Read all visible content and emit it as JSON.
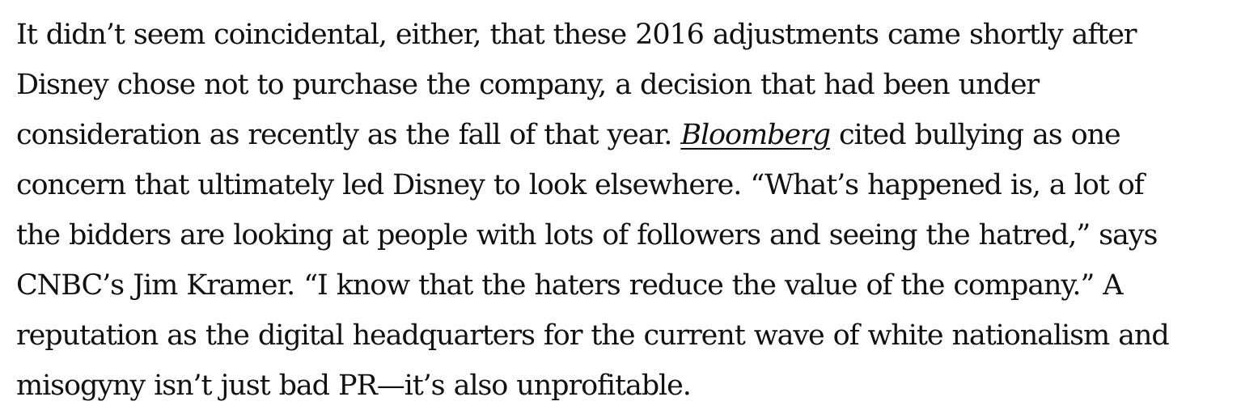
{
  "article": {
    "line1": "It didn’t seem coincidental, either, that these 2016 adjustments came shortly after",
    "line2": "Disney chose not to purchase the company, a decision that had been under",
    "line3_before": "consideration as recently as the fall of that year. ",
    "line3_link": "Bloomberg",
    "line3_after": " cited bullying as one",
    "line4": "concern that ultimately led Disney to look elsewhere. “What’s happened is, a lot of",
    "line5": "the bidders are looking at people with lots of followers and seeing the hatred,” says",
    "line6": "CNBC’s Jim Kramer. “I know that the haters reduce the value of the company.” A",
    "line7": "reputation as the digital headquarters for the current wave of white nationalism and",
    "line8": "misogyny isn’t just bad PR—it’s also unprofitable."
  }
}
